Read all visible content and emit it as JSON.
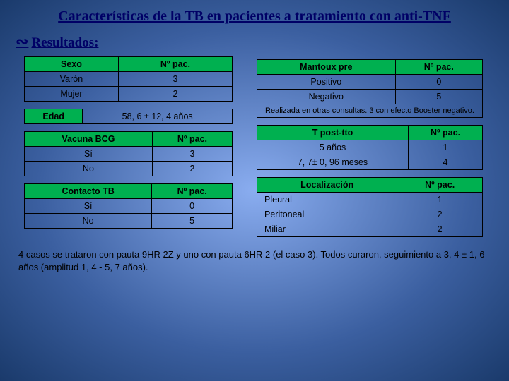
{
  "title": "Características de la TB en pacientes a tratamiento con anti-TNF",
  "subtitle": "Resultados:",
  "tables": {
    "sexo": {
      "headers": [
        "Sexo",
        "Nº pac."
      ],
      "rows": [
        [
          "Varón",
          "3"
        ],
        [
          "Mujer",
          "2"
        ]
      ]
    },
    "edad": {
      "label": "Edad",
      "value": "58, 6 ± 12, 4 años"
    },
    "bcg": {
      "headers": [
        "Vacuna BCG",
        "Nº pac."
      ],
      "rows": [
        [
          "Sí",
          "3"
        ],
        [
          "No",
          "2"
        ]
      ]
    },
    "contacto": {
      "headers": [
        "Contacto TB",
        "Nº pac."
      ],
      "rows": [
        [
          "Sí",
          "0"
        ],
        [
          "No",
          "5"
        ]
      ]
    },
    "mantoux": {
      "headers": [
        "Mantoux pre",
        "Nº pac."
      ],
      "rows": [
        [
          "Positivo",
          "0"
        ],
        [
          "Negativo",
          "5"
        ]
      ],
      "note": "Realizada en otras consultas. 3 con efecto Booster negativo."
    },
    "tpost": {
      "headers": [
        "T post-tto",
        "Nº pac."
      ],
      "rows": [
        [
          "5 años",
          "1"
        ],
        [
          "7, 7± 0, 96 meses",
          "4"
        ]
      ]
    },
    "loc": {
      "headers": [
        "Localización",
        "Nº pac."
      ],
      "rows": [
        [
          "Pleural",
          "1"
        ],
        [
          "Peritoneal",
          "2"
        ],
        [
          "Miliar",
          "2"
        ]
      ]
    }
  },
  "footnote": "4 casos se trataron con pauta 9HR 2Z y uno con pauta 6HR 2 (el caso 3). Todos curaron, seguimiento a 3, 4 ± 1, 6 años (amplitud 1, 4 - 5, 7 años).",
  "colors": {
    "header_green": "#00b050",
    "title_navy": "#000066"
  }
}
